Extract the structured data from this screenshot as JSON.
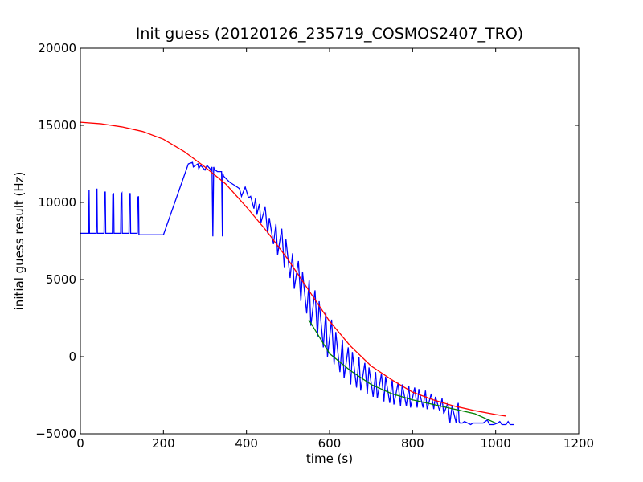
{
  "chart_data": {
    "type": "line",
    "title": "Init guess (20120126_235719_COSMOS2407_TRO)",
    "xlabel": "time (s)",
    "ylabel": "initial guess result (Hz)",
    "xlim": [
      0,
      1200
    ],
    "ylim": [
      -5000,
      20000
    ],
    "xticks": [
      0,
      200,
      400,
      600,
      800,
      1000,
      1200
    ],
    "yticks": [
      -5000,
      0,
      5000,
      10000,
      15000,
      20000
    ],
    "xtick_labels": [
      "0",
      "200",
      "400",
      "600",
      "800",
      "1000",
      "1200"
    ],
    "ytick_labels": [
      "−5000",
      "0",
      "5000",
      "10000",
      "15000",
      "20000"
    ],
    "grid": false,
    "legend": "none",
    "series": [
      {
        "color": "#0000ff",
        "x": [
          0,
          20,
          21,
          22,
          25,
          38,
          40,
          41,
          42,
          45,
          57,
          58,
          60,
          61,
          62,
          65,
          77,
          78,
          80,
          81,
          82,
          85,
          97,
          98,
          100,
          101,
          102,
          105,
          117,
          118,
          120,
          121,
          122,
          125,
          137,
          138,
          140,
          141,
          142,
          145,
          200,
          260,
          270,
          272,
          283,
          285,
          290,
          300,
          305,
          315,
          317,
          319,
          321,
          323,
          325,
          330,
          340,
          342,
          343,
          345,
          360,
          372,
          383,
          388,
          397,
          405,
          410,
          418,
          422,
          425,
          431,
          435,
          445,
          451,
          455,
          465,
          471,
          475,
          485,
          491,
          495,
          505,
          511,
          515,
          525,
          531,
          535,
          545,
          551,
          555,
          565,
          571,
          575,
          585,
          591,
          595,
          605,
          611,
          615,
          625,
          631,
          635,
          645,
          651,
          655,
          665,
          671,
          675,
          685,
          691,
          695,
          705,
          711,
          715,
          725,
          731,
          735,
          745,
          751,
          755,
          765,
          771,
          775,
          785,
          791,
          795,
          805,
          811,
          815,
          825,
          831,
          835,
          845,
          851,
          855,
          865,
          871,
          875,
          885,
          890,
          895,
          905,
          908,
          910,
          912,
          914,
          917,
          920,
          925,
          940,
          945,
          955,
          970,
          980,
          985,
          995,
          1005,
          1010,
          1015,
          1025,
          1030,
          1035,
          1045
        ],
        "y": [
          8000,
          8000,
          10800,
          8000,
          8000,
          8000,
          10900,
          8000,
          8000,
          8000,
          8000,
          10600,
          10700,
          8000,
          8000,
          8000,
          8000,
          10500,
          10600,
          8000,
          8000,
          8000,
          8000,
          10500,
          10600,
          8000,
          8000,
          8000,
          8000,
          10500,
          10600,
          8000,
          8000,
          8000,
          8000,
          10300,
          10400,
          7900,
          7900,
          7900,
          7900,
          12500,
          12600,
          12300,
          12500,
          12200,
          12400,
          12100,
          12400,
          12100,
          12300,
          7800,
          12300,
          12100,
          12100,
          12000,
          12000,
          7800,
          11900,
          11700,
          11300,
          11100,
          10900,
          10400,
          11000,
          10300,
          10400,
          9600,
          10300,
          9200,
          9900,
          8700,
          9700,
          8000,
          9000,
          7300,
          8600,
          6600,
          8300,
          5800,
          7600,
          5100,
          6700,
          4400,
          6200,
          3600,
          5500,
          2800,
          5000,
          2000,
          4300,
          1300,
          3600,
          600,
          2900,
          0,
          2400,
          -500,
          1600,
          -1000,
          1100,
          -1400,
          600,
          -1800,
          300,
          -2000,
          0,
          -2200,
          -400,
          -2400,
          -700,
          -2600,
          -1000,
          -2700,
          -1100,
          -2900,
          -1300,
          -3000,
          -1500,
          -3100,
          -1700,
          -3200,
          -1800,
          -3200,
          -1900,
          -3300,
          -2000,
          -3300,
          -2100,
          -3300,
          -2200,
          -3400,
          -2400,
          -3400,
          -2600,
          -3500,
          -2700,
          -3700,
          -3000,
          -4300,
          -3200,
          -4300,
          -3200,
          -3000,
          -4200,
          -4300,
          -4300,
          -4300,
          -4200,
          -4400,
          -4300,
          -4300,
          -4300,
          -4100,
          -4400,
          -4400,
          -4300,
          -4200,
          -4400,
          -4400,
          -4200,
          -4400,
          -4400
        ]
      },
      {
        "color": "#008000",
        "x": [
          550,
          600,
          650,
          700,
          750,
          800,
          850,
          900,
          950,
          1000
        ],
        "y": [
          2400,
          200,
          -900,
          -1800,
          -2400,
          -2800,
          -3100,
          -3400,
          -3700,
          -4300
        ]
      },
      {
        "color": "#ff0000",
        "x": [
          0,
          50,
          100,
          150,
          200,
          250,
          300,
          350,
          400,
          450,
          500,
          550,
          600,
          650,
          700,
          750,
          800,
          850,
          900,
          950,
          1000,
          1025
        ],
        "y": [
          15200,
          15100,
          14900,
          14600,
          14100,
          13300,
          12300,
          11200,
          9700,
          8100,
          6300,
          4300,
          2300,
          700,
          -600,
          -1500,
          -2300,
          -2800,
          -3200,
          -3500,
          -3750,
          -3850
        ]
      }
    ]
  }
}
